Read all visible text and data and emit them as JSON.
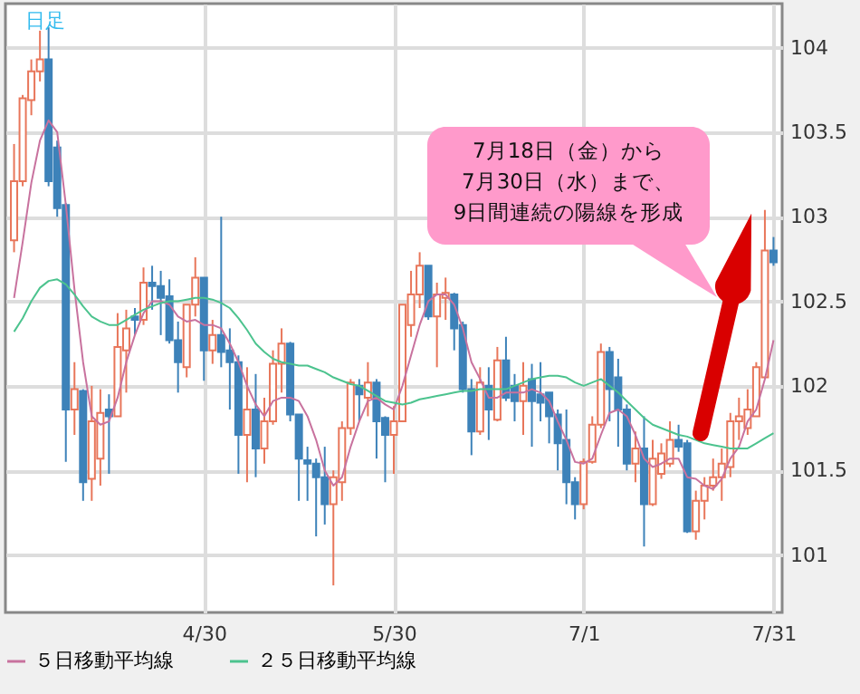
{
  "chart_data": {
    "type": "candlestick",
    "title": "日足",
    "annotations": [
      "7月18日（金）から\n7月30日（水）まで、\n9日間連続の陽線を形成"
    ],
    "categories": [
      null,
      null,
      null,
      null,
      null,
      null,
      null,
      null,
      null,
      null,
      null,
      null,
      null,
      null,
      null,
      null,
      null,
      null,
      null,
      null,
      null,
      null,
      "4/30",
      null,
      null,
      null,
      null,
      null,
      null,
      null,
      null,
      null,
      null,
      null,
      null,
      null,
      null,
      null,
      null,
      null,
      null,
      null,
      null,
      null,
      "5/30",
      null,
      null,
      null,
      null,
      null,
      null,
      null,
      null,
      null,
      null,
      null,
      null,
      null,
      null,
      null,
      null,
      null,
      null,
      null,
      null,
      null,
      "7/1",
      null,
      null,
      null,
      null,
      null,
      null,
      null,
      null,
      null,
      null,
      null,
      null,
      null,
      null,
      null,
      null,
      null,
      null,
      null,
      null,
      null,
      "7/31"
    ],
    "ohlc": [
      [
        102.86,
        103.43,
        102.79,
        103.21
      ],
      [
        103.21,
        103.72,
        103.18,
        103.7
      ],
      [
        103.69,
        103.93,
        103.6,
        103.86
      ],
      [
        103.86,
        104.1,
        103.8,
        103.93
      ],
      [
        103.93,
        104.12,
        103.18,
        103.21
      ],
      [
        103.41,
        103.45,
        103.0,
        103.05
      ],
      [
        103.07,
        103.08,
        101.55,
        101.86
      ],
      [
        101.86,
        102.14,
        101.71,
        101.98
      ],
      [
        101.97,
        101.98,
        101.32,
        101.43
      ],
      [
        101.45,
        102.0,
        101.32,
        101.79
      ],
      [
        101.57,
        101.98,
        101.41,
        101.84
      ],
      [
        101.86,
        101.95,
        101.48,
        101.82
      ],
      [
        101.82,
        102.43,
        101.82,
        102.23
      ],
      [
        102.21,
        102.45,
        101.96,
        102.34
      ],
      [
        102.41,
        102.46,
        102.3,
        102.39
      ],
      [
        102.39,
        102.7,
        102.36,
        102.61
      ],
      [
        102.61,
        102.71,
        102.45,
        102.59
      ],
      [
        102.59,
        102.68,
        102.3,
        102.52
      ],
      [
        102.53,
        102.63,
        102.25,
        102.27
      ],
      [
        102.27,
        102.38,
        101.96,
        102.14
      ],
      [
        102.11,
        102.48,
        102.05,
        102.48
      ],
      [
        102.48,
        102.76,
        102.41,
        102.64
      ],
      [
        102.64,
        102.64,
        102.03,
        102.21
      ],
      [
        102.21,
        102.39,
        102.13,
        102.3
      ],
      [
        102.3,
        103.0,
        102.11,
        102.2
      ],
      [
        102.21,
        102.34,
        101.86,
        102.14
      ],
      [
        102.14,
        102.18,
        101.48,
        101.71
      ],
      [
        101.71,
        102.11,
        101.43,
        101.86
      ],
      [
        101.86,
        102.07,
        101.46,
        101.63
      ],
      [
        101.63,
        101.93,
        101.54,
        101.79
      ],
      [
        101.79,
        102.21,
        101.77,
        102.13
      ],
      [
        102.13,
        102.34,
        101.96,
        102.25
      ],
      [
        102.25,
        102.26,
        101.79,
        101.83
      ],
      [
        101.83,
        101.83,
        101.32,
        101.57
      ],
      [
        101.56,
        101.64,
        101.32,
        101.54
      ],
      [
        101.54,
        101.57,
        101.11,
        101.46
      ],
      [
        101.46,
        101.64,
        101.18,
        101.3
      ],
      [
        101.3,
        101.5,
        100.82,
        101.46
      ],
      [
        101.43,
        101.79,
        101.32,
        101.75
      ],
      [
        101.75,
        102.04,
        101.71,
        102.02
      ],
      [
        102.0,
        102.04,
        101.79,
        101.95
      ],
      [
        101.93,
        102.14,
        101.82,
        102.02
      ],
      [
        102.02,
        102.04,
        101.57,
        101.79
      ],
      [
        101.81,
        101.82,
        101.43,
        101.71
      ],
      [
        101.71,
        101.88,
        101.48,
        101.79
      ],
      [
        101.79,
        102.48,
        101.79,
        102.48
      ],
      [
        102.36,
        102.68,
        102.29,
        102.54
      ],
      [
        102.54,
        102.79,
        102.46,
        102.71
      ],
      [
        102.71,
        102.71,
        102.39,
        102.41
      ],
      [
        102.41,
        102.61,
        102.11,
        102.54
      ],
      [
        102.52,
        102.64,
        102.39,
        102.55
      ],
      [
        102.54,
        102.55,
        102.21,
        102.34
      ],
      [
        102.36,
        102.38,
        101.96,
        101.98
      ],
      [
        101.98,
        102.04,
        101.59,
        101.73
      ],
      [
        101.73,
        102.11,
        101.71,
        102.02
      ],
      [
        102.0,
        102.11,
        101.68,
        101.86
      ],
      [
        101.8,
        102.23,
        101.79,
        102.15
      ],
      [
        102.15,
        102.29,
        101.91,
        101.93
      ],
      [
        102.0,
        102.07,
        101.79,
        101.91
      ],
      [
        101.91,
        102.14,
        101.71,
        102.0
      ],
      [
        102.04,
        102.13,
        101.64,
        101.91
      ],
      [
        101.95,
        102.14,
        101.79,
        101.9
      ],
      [
        101.96,
        101.96,
        101.66,
        101.82
      ],
      [
        101.83,
        101.86,
        101.5,
        101.66
      ],
      [
        101.68,
        101.86,
        101.3,
        101.43
      ],
      [
        101.43,
        101.46,
        101.21,
        101.3
      ],
      [
        101.3,
        101.57,
        101.27,
        101.55
      ],
      [
        101.55,
        101.82,
        101.54,
        101.77
      ],
      [
        101.77,
        102.25,
        101.75,
        102.2
      ],
      [
        102.2,
        102.23,
        101.79,
        101.98
      ],
      [
        102.05,
        102.16,
        101.64,
        101.86
      ],
      [
        101.86,
        101.89,
        101.5,
        101.54
      ],
      [
        101.54,
        101.73,
        101.43,
        101.63
      ],
      [
        101.63,
        101.82,
        101.05,
        101.3
      ],
      [
        101.3,
        101.68,
        101.29,
        101.57
      ],
      [
        101.48,
        101.66,
        101.45,
        101.6
      ],
      [
        101.54,
        101.79,
        101.52,
        101.68
      ],
      [
        101.68,
        101.77,
        101.61,
        101.64
      ],
      [
        101.66,
        101.68,
        101.13,
        101.14
      ],
      [
        101.14,
        101.38,
        101.09,
        101.32
      ],
      [
        101.32,
        101.46,
        101.21,
        101.41
      ],
      [
        101.41,
        101.57,
        101.38,
        101.46
      ],
      [
        101.46,
        101.63,
        101.32,
        101.54
      ],
      [
        101.52,
        101.84,
        101.46,
        101.79
      ],
      [
        101.79,
        101.93,
        101.68,
        101.82
      ],
      [
        101.75,
        101.98,
        101.71,
        101.86
      ],
      [
        101.82,
        102.14,
        101.82,
        102.11
      ],
      [
        102.05,
        103.04,
        102.04,
        102.8
      ],
      [
        102.8,
        102.88,
        102.71,
        102.73
      ]
    ],
    "series": [
      {
        "name": "５日移動平均線",
        "type": "line",
        "color": "#c8729e",
        "values": [
          102.52,
          102.85,
          103.2,
          103.45,
          103.57,
          103.5,
          103.07,
          102.57,
          102.14,
          101.82,
          101.77,
          101.79,
          101.93,
          102.14,
          102.3,
          102.43,
          102.5,
          102.5,
          102.48,
          102.41,
          102.38,
          102.39,
          102.36,
          102.36,
          102.34,
          102.25,
          102.14,
          102.0,
          101.89,
          101.82,
          101.91,
          101.93,
          101.93,
          101.91,
          101.82,
          101.68,
          101.5,
          101.41,
          101.46,
          101.64,
          101.79,
          101.91,
          101.93,
          101.89,
          101.86,
          102.0,
          102.18,
          102.36,
          102.5,
          102.54,
          102.54,
          102.48,
          102.34,
          102.14,
          102.04,
          101.93,
          101.93,
          101.96,
          101.96,
          101.96,
          101.98,
          101.96,
          101.91,
          101.79,
          101.68,
          101.55,
          101.54,
          101.57,
          101.71,
          101.84,
          101.86,
          101.82,
          101.71,
          101.57,
          101.52,
          101.54,
          101.57,
          101.57,
          101.46,
          101.45,
          101.41,
          101.39,
          101.45,
          101.57,
          101.64,
          101.79,
          101.86,
          102.04,
          102.27
        ]
      },
      {
        "name": "２５日移動平均線",
        "type": "line",
        "color": "#4cc38e",
        "values": [
          102.32,
          102.4,
          102.5,
          102.58,
          102.62,
          102.63,
          102.6,
          102.54,
          102.47,
          102.41,
          102.38,
          102.36,
          102.36,
          102.39,
          102.42,
          102.45,
          102.47,
          102.49,
          102.5,
          102.5,
          102.51,
          102.52,
          102.52,
          102.51,
          102.49,
          102.46,
          102.4,
          102.33,
          102.25,
          102.2,
          102.16,
          102.14,
          102.13,
          102.12,
          102.12,
          102.1,
          102.08,
          102.05,
          102.03,
          102.01,
          102.0,
          101.97,
          101.94,
          101.91,
          101.9,
          101.89,
          101.9,
          101.92,
          101.93,
          101.94,
          101.95,
          101.96,
          101.97,
          101.97,
          101.98,
          101.98,
          101.98,
          101.98,
          102.0,
          102.02,
          102.04,
          102.05,
          102.06,
          102.06,
          102.05,
          102.02,
          102.0,
          102.02,
          102.04,
          102.0,
          101.96,
          101.91,
          101.86,
          101.81,
          101.77,
          101.75,
          101.73,
          101.71,
          101.7,
          101.68,
          101.66,
          101.65,
          101.64,
          101.63,
          101.63,
          101.63,
          101.66,
          101.69,
          101.72
        ]
      }
    ],
    "ylim": [
      100.66,
      104.26
    ],
    "yticks": [
      101,
      101.5,
      102,
      102.5,
      103,
      103.5,
      104
    ],
    "grid": true,
    "legend": "bottom"
  }
}
